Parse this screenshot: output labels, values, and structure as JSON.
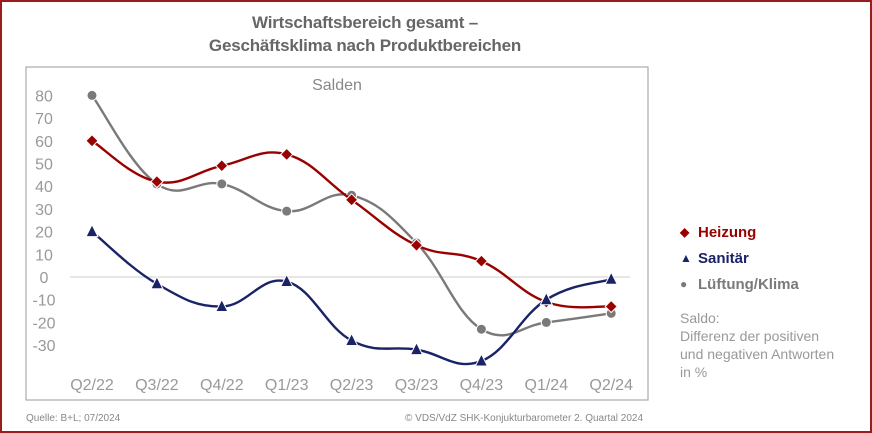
{
  "title_line1": "Wirtschaftsbereich gesamt –",
  "title_line2": "Geschäftsklima nach Produktbereichen",
  "chart_data": {
    "type": "line",
    "title": "Wirtschaftsbereich gesamt – Geschäftsklima nach Produktbereichen",
    "subtitle": "Salden",
    "categories": [
      "Q2/22",
      "Q3/22",
      "Q4/22",
      "Q1/23",
      "Q2/23",
      "Q3/23",
      "Q4/23",
      "Q1/24",
      "Q2/24"
    ],
    "yticks": [
      80,
      70,
      60,
      50,
      40,
      30,
      20,
      10,
      0,
      -10,
      -20,
      -30
    ],
    "ylim": [
      -50,
      90
    ],
    "grid": "zero-line only",
    "legend_position": "right",
    "series": [
      {
        "name": "Heizung",
        "color": "#990000",
        "marker": "diamond",
        "values": [
          60,
          42,
          49,
          54,
          34,
          14,
          7,
          -11,
          -13
        ]
      },
      {
        "name": "Sanitär",
        "color": "#1a2366",
        "marker": "triangle",
        "values": [
          20,
          -3,
          -13,
          -2,
          -28,
          -32,
          -37,
          -10,
          -1
        ]
      },
      {
        "name": "Lüftung/Klima",
        "color": "#7a7a7a",
        "marker": "circle",
        "values": [
          80,
          41,
          41,
          29,
          36,
          15,
          -23,
          -20,
          -16
        ]
      }
    ]
  },
  "legend": [
    {
      "label": "Heizung",
      "symbol": "◆",
      "color": "#990000"
    },
    {
      "label": "Sanitär",
      "symbol": "▲",
      "color": "#1a2366"
    },
    {
      "label": "Lüftung/Klima",
      "symbol": "●",
      "color": "#7a7a7a"
    }
  ],
  "note": [
    "Saldo:",
    "Differenz der positiven",
    "und negativen Antworten",
    "in %"
  ],
  "footer": {
    "source": "Quelle: B+L; 07/2024",
    "copyright": "© VDS/VdZ SHK-Konjukturbarometer 2. Quartal 2024"
  }
}
